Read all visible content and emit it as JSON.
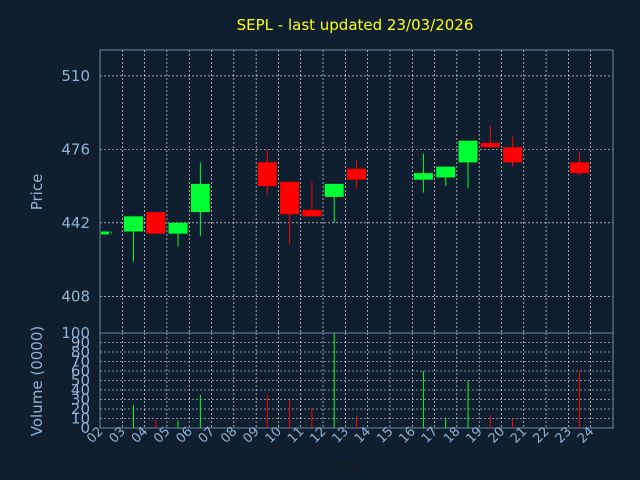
{
  "chart_data": {
    "type": "candlestick",
    "title": "SEPL - last updated 23/03/2026",
    "xlabel": "Day",
    "price_panel": {
      "ylabel": "Price",
      "yticks": [
        408,
        442,
        476,
        510
      ],
      "ylim": [
        391,
        522
      ],
      "grid": true
    },
    "volume_panel": {
      "ylabel": "Volume (0000)",
      "yticks": [
        0,
        10,
        20,
        30,
        40,
        50,
        60,
        70,
        80,
        90,
        100
      ],
      "ylim": [
        0,
        100
      ],
      "grid": true
    },
    "x_ticks": [
      "02",
      "03",
      "04",
      "05",
      "06",
      "07",
      "08",
      "09",
      "10",
      "11",
      "12",
      "13",
      "14",
      "15",
      "16",
      "17",
      "18",
      "19",
      "20",
      "21",
      "22",
      "23",
      "24"
    ],
    "candles": [
      {
        "day": "02",
        "open": 437,
        "close": 438,
        "high": 438,
        "low": 437,
        "volume": 0
      },
      {
        "day": "03",
        "open": 438,
        "close": 445,
        "high": 445,
        "low": 424,
        "volume": 24
      },
      {
        "day": "04",
        "open": 447,
        "close": 437,
        "high": 447,
        "low": 437,
        "volume": 8
      },
      {
        "day": "05",
        "open": 437,
        "close": 442,
        "high": 442,
        "low": 431,
        "volume": 8
      },
      {
        "day": "06",
        "open": 447,
        "close": 460,
        "high": 470,
        "low": 436,
        "volume": 35
      },
      {
        "day": "09",
        "open": 470,
        "close": 459,
        "high": 476,
        "low": 455,
        "volume": 35
      },
      {
        "day": "10",
        "open": 461,
        "close": 446,
        "high": 461,
        "low": 432,
        "volume": 29
      },
      {
        "day": "11",
        "open": 448,
        "close": 445,
        "high": 461,
        "low": 445,
        "volume": 21
      },
      {
        "day": "12",
        "open": 454,
        "close": 460,
        "high": 460,
        "low": 442,
        "volume": 100
      },
      {
        "day": "13",
        "open": 467,
        "close": 462,
        "high": 471,
        "low": 458,
        "volume": 13
      },
      {
        "day": "16",
        "open": 462,
        "close": 465,
        "high": 474,
        "low": 456,
        "volume": 60
      },
      {
        "day": "17",
        "open": 463,
        "close": 468,
        "high": 468,
        "low": 459,
        "volume": 11
      },
      {
        "day": "18",
        "open": 470,
        "close": 480,
        "high": 480,
        "low": 458,
        "volume": 50
      },
      {
        "day": "19",
        "open": 479,
        "close": 477,
        "high": 487,
        "low": 477,
        "volume": 14
      },
      {
        "day": "20",
        "open": 477,
        "close": 470,
        "high": 482,
        "low": 468,
        "volume": 10
      },
      {
        "day": "23",
        "open": 470,
        "close": 465,
        "high": 475,
        "low": 464,
        "volume": 60
      }
    ],
    "colors": {
      "background": "#0f1f30",
      "up": "#00ff33",
      "down": "#ff0000",
      "grid": "#ffffff",
      "axis_text": "#8db3d6",
      "title": "#ffff00",
      "frame": "#6b8aa8"
    }
  }
}
